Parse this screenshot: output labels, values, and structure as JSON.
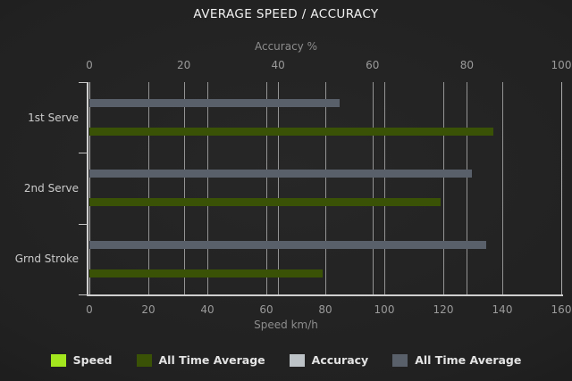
{
  "title": "AVERAGE SPEED / ACCURACY",
  "colors": {
    "background": "#212121",
    "grid": "#b3b3b3",
    "axis_line": "#cfcfcf",
    "title_text": "#f2f2f2",
    "tick_text": "#9a9a9a",
    "axis_title_text": "#8d8d8d",
    "category_text": "#cbcbcb",
    "legend_text": "#e3e3e3",
    "speed": "#A3E61E",
    "speed_all_time_average": "#3A5206",
    "accuracy": "#BDC3C7",
    "accuracy_all_time_average": "#59606A"
  },
  "chart_data": {
    "type": "bar",
    "orientation": "horizontal",
    "title": "AVERAGE SPEED / ACCURACY",
    "categories": [
      "1st Serve",
      "2nd Serve",
      "Grnd Stroke"
    ],
    "axes": {
      "top": {
        "label": "Accuracy %",
        "min": 0,
        "max": 100,
        "step": 20,
        "ticks": [
          0,
          20,
          40,
          60,
          80,
          100
        ]
      },
      "bottom": {
        "label": "Speed km/h",
        "min": 0,
        "max": 160,
        "step": 20,
        "ticks": [
          0,
          20,
          40,
          60,
          80,
          100,
          120,
          140,
          160
        ]
      }
    },
    "grid": true,
    "legend_position": "bottom",
    "series": [
      {
        "name": "Speed",
        "color": "#A3E61E",
        "axis": "bottom",
        "values": [
          null,
          null,
          null
        ],
        "bars_visible": false
      },
      {
        "name": "All Time Average",
        "color": "#3A5206",
        "axis": "bottom",
        "values": [
          137,
          119,
          79
        ],
        "bars_visible": true
      },
      {
        "name": "Accuracy",
        "color": "#BDC3C7",
        "axis": "top",
        "values": [
          null,
          null,
          null
        ],
        "bars_visible": false
      },
      {
        "name": "All Time Average",
        "color": "#59606A",
        "axis": "top",
        "values": [
          53,
          81,
          84
        ],
        "bars_visible": true
      }
    ]
  }
}
